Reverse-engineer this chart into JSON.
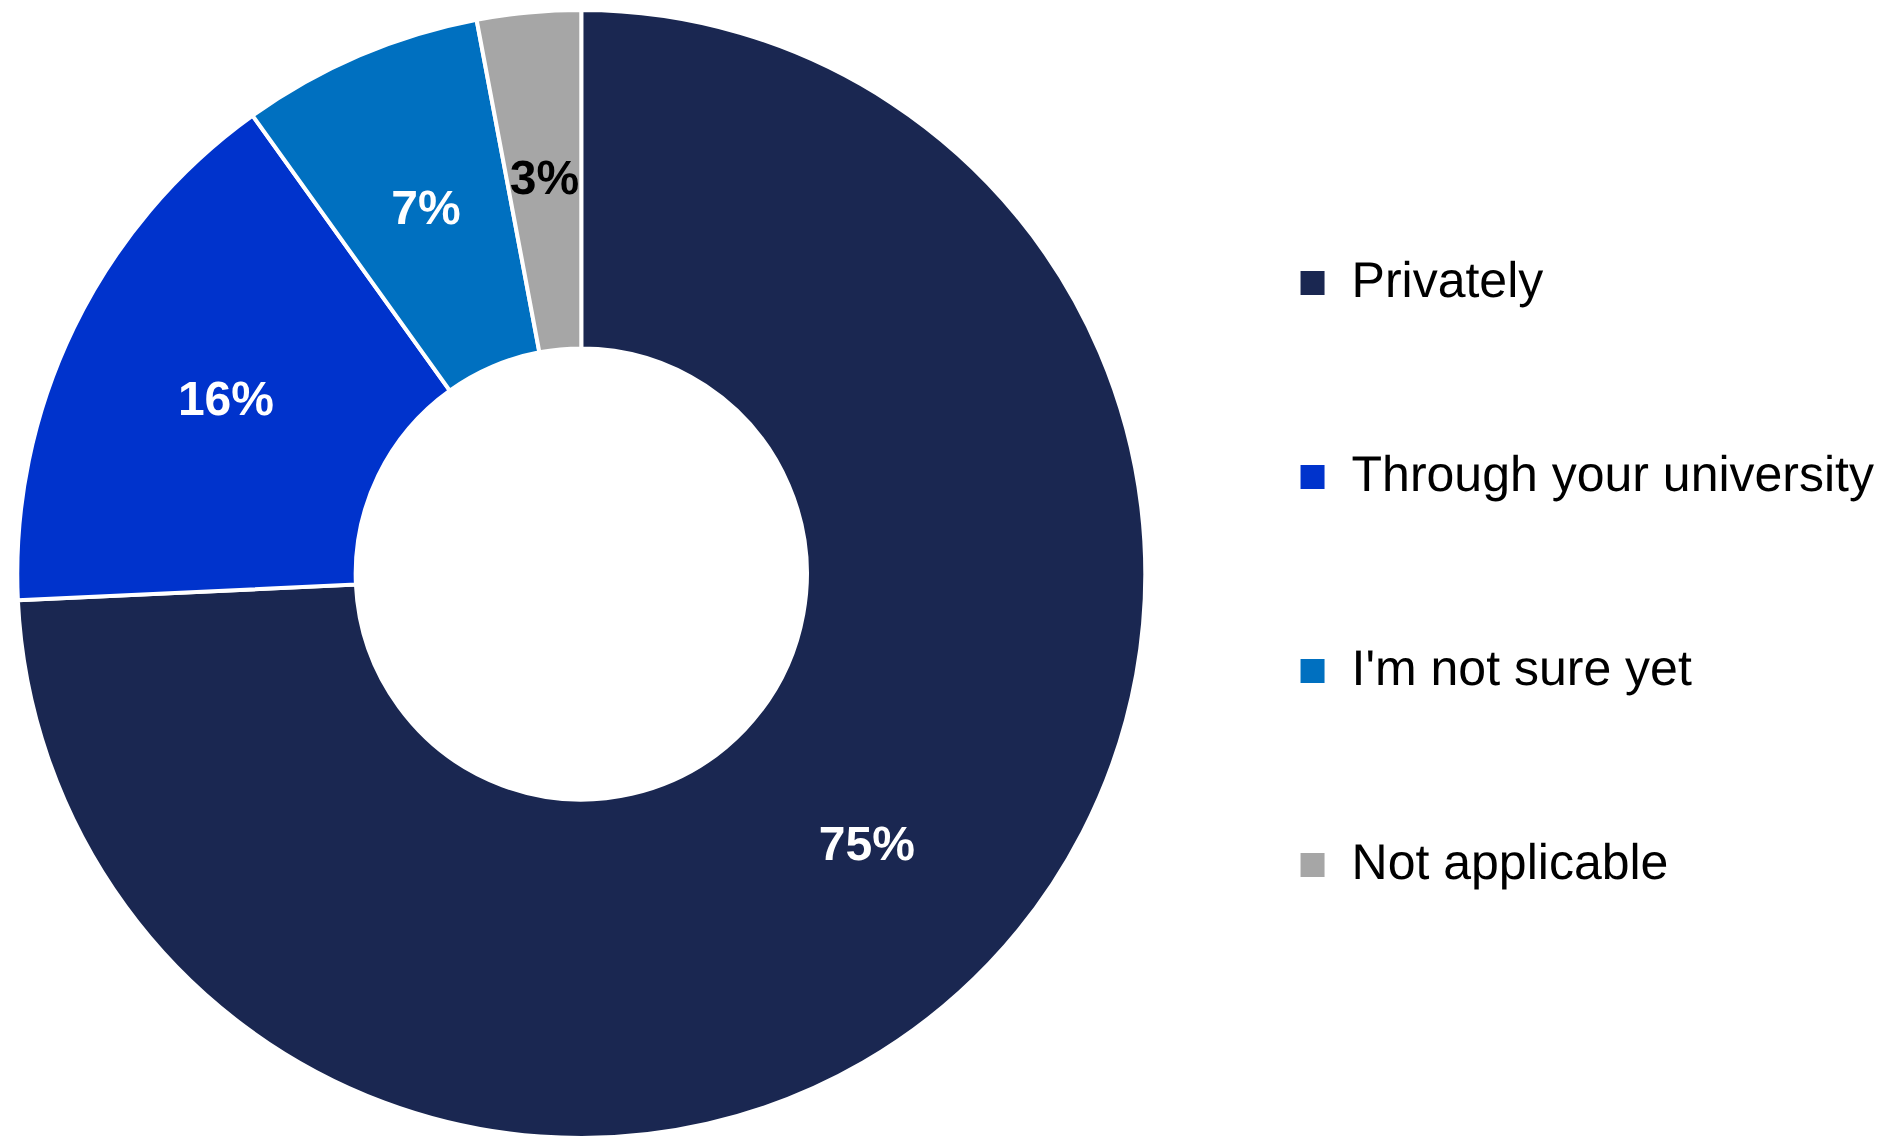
{
  "chart_data": {
    "type": "donut",
    "categories": [
      "Privately",
      "Through your university",
      "I'm not sure yet",
      "Not applicable"
    ],
    "values": [
      75,
      16,
      7,
      3
    ],
    "colors": [
      "#1a2751",
      "#0033cc",
      "#0070c0",
      "#a6a6a6"
    ],
    "value_labels": [
      "75%",
      "16%",
      "7%",
      "3%"
    ],
    "legend": "right"
  }
}
